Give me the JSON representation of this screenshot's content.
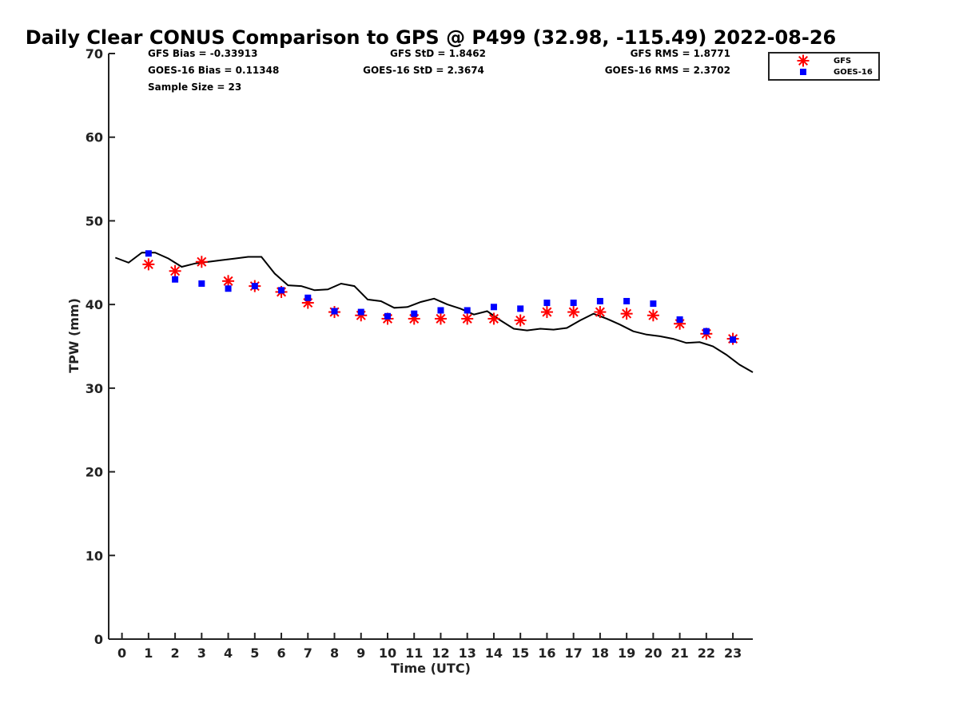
{
  "chart_data": {
    "type": "scatter",
    "title": "Daily Clear CONUS Comparison to GPS @ P499 (32.98, -115.49) 2022-08-26",
    "xlabel": "Time (UTC)",
    "ylabel": "TPW (mm)",
    "xlim": [
      -0.5,
      23.75
    ],
    "ylim": [
      0,
      70
    ],
    "xticks": [
      0,
      1,
      2,
      3,
      4,
      5,
      6,
      7,
      8,
      9,
      10,
      11,
      12,
      13,
      14,
      15,
      16,
      17,
      18,
      19,
      20,
      21,
      22,
      23
    ],
    "yticks": [
      0,
      10,
      20,
      30,
      40,
      50,
      60,
      70
    ],
    "grid": false,
    "legend_position": "top-right",
    "stats": {
      "gfs_bias": "GFS Bias = -0.33913",
      "goes_bias": "GOES-16 Bias = 0.11348",
      "sample_size": "Sample Size = 23",
      "gfs_std": "GFS StD = 1.8462",
      "goes_std": "GOES-16 StD = 2.3674",
      "gfs_rms": "GFS RMS = 1.8771",
      "goes_rms": "GOES-16 RMS = 2.3702"
    },
    "series": [
      {
        "type": "line",
        "color": "#000000",
        "points": [
          [
            -0.25,
            45.6
          ],
          [
            0.25,
            45.0
          ],
          [
            0.75,
            46.2
          ],
          [
            1.25,
            46.2
          ],
          [
            1.75,
            45.5
          ],
          [
            2.25,
            44.5
          ],
          [
            2.75,
            44.9
          ],
          [
            3.25,
            45.1
          ],
          [
            3.75,
            45.3
          ],
          [
            4.25,
            45.5
          ],
          [
            4.75,
            45.7
          ],
          [
            5.25,
            45.7
          ],
          [
            5.75,
            43.7
          ],
          [
            6.25,
            42.3
          ],
          [
            6.75,
            42.2
          ],
          [
            7.25,
            41.7
          ],
          [
            7.75,
            41.8
          ],
          [
            8.25,
            42.5
          ],
          [
            8.75,
            42.2
          ],
          [
            9.25,
            40.6
          ],
          [
            9.75,
            40.4
          ],
          [
            10.25,
            39.6
          ],
          [
            10.75,
            39.7
          ],
          [
            11.25,
            40.3
          ],
          [
            11.75,
            40.7
          ],
          [
            12.25,
            40.0
          ],
          [
            12.75,
            39.5
          ],
          [
            13.25,
            38.8
          ],
          [
            13.75,
            39.2
          ],
          [
            14.25,
            38.1
          ],
          [
            14.75,
            37.1
          ],
          [
            15.25,
            36.9
          ],
          [
            15.75,
            37.1
          ],
          [
            16.25,
            37.0
          ],
          [
            16.75,
            37.2
          ],
          [
            17.25,
            38.1
          ],
          [
            17.75,
            38.9
          ],
          [
            18.25,
            38.3
          ],
          [
            18.75,
            37.6
          ],
          [
            19.25,
            36.8
          ],
          [
            19.75,
            36.4
          ],
          [
            20.25,
            36.2
          ],
          [
            20.75,
            35.9
          ],
          [
            21.25,
            35.4
          ],
          [
            21.75,
            35.5
          ],
          [
            22.25,
            35.0
          ],
          [
            22.75,
            34.0
          ],
          [
            23.25,
            32.8
          ],
          [
            23.75,
            31.9
          ]
        ]
      },
      {
        "name": "GFS",
        "type": "scatter",
        "marker": "asterisk",
        "color": "#ff0000",
        "x": [
          1,
          2,
          3,
          4,
          5,
          6,
          7,
          8,
          9,
          10,
          11,
          12,
          13,
          14,
          15,
          16,
          17,
          18,
          19,
          20,
          21,
          22,
          23
        ],
        "y": [
          44.8,
          44.0,
          45.1,
          42.8,
          42.2,
          41.5,
          40.2,
          39.1,
          38.7,
          38.3,
          38.3,
          38.3,
          38.3,
          38.3,
          38.1,
          39.1,
          39.1,
          39.1,
          38.9,
          38.7,
          37.7,
          36.5,
          35.9
        ]
      },
      {
        "name": "GOES-16",
        "type": "scatter",
        "marker": "square",
        "color": "#0000ff",
        "x": [
          1,
          2,
          3,
          4,
          5,
          6,
          7,
          8,
          9,
          10,
          11,
          12,
          13,
          14,
          15,
          16,
          17,
          18,
          19,
          20,
          21,
          22,
          23
        ],
        "y": [
          46.1,
          43.0,
          42.5,
          41.9,
          42.2,
          41.7,
          40.8,
          39.2,
          39.1,
          38.6,
          38.9,
          39.3,
          39.3,
          39.7,
          39.5,
          40.2,
          40.2,
          40.4,
          40.4,
          40.1,
          38.2,
          36.8,
          35.8
        ]
      }
    ]
  }
}
